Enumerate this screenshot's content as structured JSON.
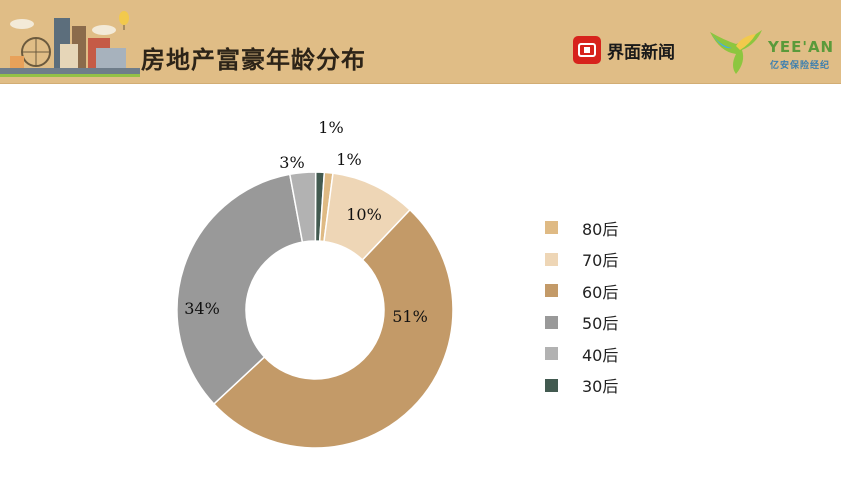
{
  "header": {
    "title": "房地产富豪年龄分布",
    "news_logo_text": "界面新闻",
    "partner_logo_text": "YEE'AN",
    "partner_logo_sub": "亿安保险经纪"
  },
  "colors": {
    "header_bg": "#e0bd86",
    "news_red": "#d7231c"
  },
  "chart_data": {
    "type": "pie",
    "donut": true,
    "title": "",
    "legend_position": "right",
    "categories": [
      "80后",
      "70后",
      "60后",
      "50后",
      "40后",
      "30后"
    ],
    "values": [
      1,
      10,
      51,
      34,
      3,
      1
    ],
    "labels": [
      "1%",
      "10%",
      "51%",
      "34%",
      "3%",
      "1%"
    ],
    "colors": [
      "#dfba84",
      "#eed6b6",
      "#c39a68",
      "#999999",
      "#b2b2b2",
      "#425a50"
    ]
  }
}
